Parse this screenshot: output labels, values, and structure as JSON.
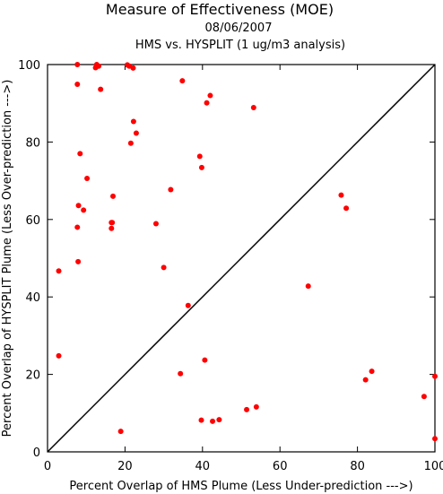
{
  "chart_data": {
    "type": "scatter",
    "title": "Measure of Effectiveness (MOE)",
    "subtitle": "08/06/2007",
    "subtitle2": "HMS vs. HYSPLIT  (1 ug/m3 analysis)",
    "xlabel": "Percent Overlap of HMS Plume (Less Under-prediction --->)",
    "ylabel": "Percent Overlap of HYSPLIT Plume (Less Over-prediction --->)",
    "xlim": [
      0,
      100
    ],
    "ylim": [
      0,
      100
    ],
    "xticks": [
      "0",
      "20",
      "40",
      "60",
      "80",
      "100"
    ],
    "yticks": [
      "0",
      "20",
      "40",
      "60",
      "80",
      "100"
    ],
    "grid": false,
    "point_color": "#ff0000",
    "reference_line": "y = x",
    "points": [
      [
        7.7,
        100.0
      ],
      [
        12.7,
        100.0
      ],
      [
        13.2,
        99.6
      ],
      [
        12.4,
        99.2
      ],
      [
        20.6,
        99.9
      ],
      [
        21.1,
        99.6
      ],
      [
        22.1,
        99.1
      ],
      [
        7.7,
        94.9
      ],
      [
        13.7,
        93.6
      ],
      [
        34.8,
        95.8
      ],
      [
        42.0,
        92.0
      ],
      [
        41.1,
        90.1
      ],
      [
        53.2,
        88.9
      ],
      [
        22.2,
        85.3
      ],
      [
        22.9,
        82.3
      ],
      [
        21.5,
        79.7
      ],
      [
        8.4,
        77.0
      ],
      [
        39.3,
        76.3
      ],
      [
        39.8,
        73.4
      ],
      [
        10.2,
        70.6
      ],
      [
        31.8,
        67.7
      ],
      [
        16.9,
        66.0
      ],
      [
        8.0,
        63.6
      ],
      [
        9.3,
        62.4
      ],
      [
        16.5,
        59.2
      ],
      [
        16.7,
        59.2
      ],
      [
        28.0,
        58.9
      ],
      [
        7.7,
        58.0
      ],
      [
        16.5,
        57.7
      ],
      [
        7.9,
        49.1
      ],
      [
        30.0,
        47.6
      ],
      [
        2.9,
        46.7
      ],
      [
        36.3,
        37.8
      ],
      [
        2.9,
        24.8
      ],
      [
        34.3,
        20.2
      ],
      [
        40.6,
        23.7
      ],
      [
        39.7,
        8.2
      ],
      [
        42.6,
        7.9
      ],
      [
        44.3,
        8.3
      ],
      [
        18.9,
        5.3
      ],
      [
        51.4,
        10.9
      ],
      [
        53.9,
        11.6
      ],
      [
        67.3,
        42.8
      ],
      [
        75.8,
        66.3
      ],
      [
        77.1,
        62.9
      ],
      [
        82.1,
        18.6
      ],
      [
        83.7,
        20.8
      ],
      [
        97.2,
        14.3
      ],
      [
        100.0,
        19.5
      ],
      [
        100.0,
        3.4
      ]
    ]
  }
}
